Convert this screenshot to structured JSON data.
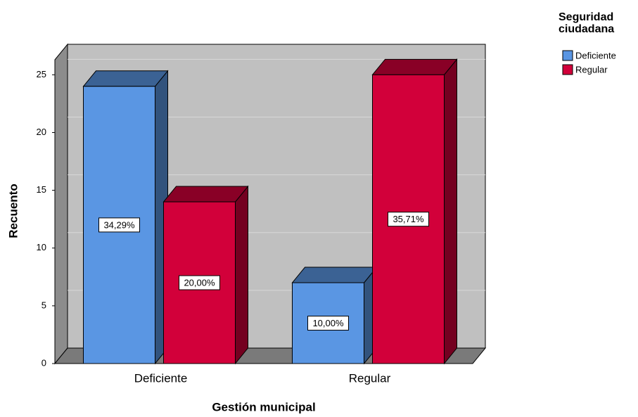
{
  "chart_data": {
    "type": "bar3d",
    "x_label": "Gestión municipal",
    "y_label": "Recuento",
    "legend_title": "Seguridad ciudadana",
    "categories": [
      "Deficiente",
      "Regular"
    ],
    "series": [
      {
        "name": "Deficiente",
        "color": "#5a96e3",
        "values": [
          24,
          7
        ],
        "data_labels": [
          "34,29%",
          "10,00%"
        ]
      },
      {
        "name": "Regular",
        "color": "#d2003a",
        "values": [
          14,
          25
        ],
        "data_labels": [
          "20,00%",
          "35,71%"
        ]
      }
    ],
    "ylim": [
      0,
      26.3
    ],
    "yticks": [
      0,
      5,
      10,
      15,
      20,
      25
    ],
    "grid": true,
    "legend": "upper right"
  }
}
